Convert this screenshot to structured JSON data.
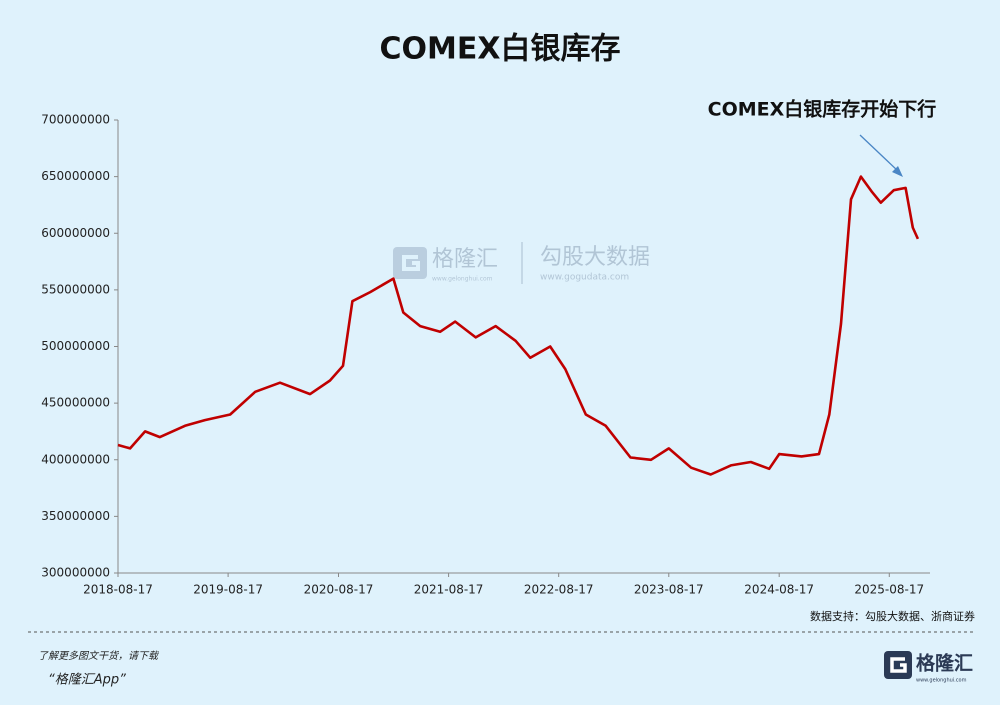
{
  "chart_data": {
    "type": "line",
    "title": "COMEX白银库存",
    "annotation": "COMEX白银库存开始下行",
    "source": "数据支持：勾股大数据、浙商证券",
    "x": [
      "2018-08-17",
      "2018-09-26",
      "2018-11-15",
      "2019-01-03",
      "2019-03-27",
      "2019-06-01",
      "2019-08-24",
      "2019-11-15",
      "2020-02-05",
      "2020-05-15",
      "2020-07-20",
      "2020-09-01",
      "2020-10-02",
      "2020-11-30",
      "2021-02-15",
      "2021-03-20",
      "2021-05-15",
      "2021-07-20",
      "2021-09-08",
      "2021-11-15",
      "2022-01-20",
      "2022-03-27",
      "2022-05-15",
      "2022-07-20",
      "2022-09-08",
      "2022-11-15",
      "2023-01-20",
      "2023-04-12",
      "2023-06-19",
      "2023-08-17",
      "2023-10-30",
      "2024-01-03",
      "2024-03-10",
      "2024-05-15",
      "2024-07-15",
      "2024-08-17",
      "2024-10-30",
      "2024-12-27",
      "2025-01-30",
      "2025-03-10",
      "2025-04-12",
      "2025-05-15",
      "2025-06-19",
      "2025-07-20",
      "2025-09-01",
      "2025-10-10",
      "2025-11-03",
      "2025-11-20"
    ],
    "values": [
      413000000,
      410000000,
      425000000,
      420000000,
      430000000,
      435000000,
      440000000,
      460000000,
      468000000,
      458000000,
      470000000,
      483000000,
      540000000,
      548000000,
      560000000,
      530000000,
      518000000,
      513000000,
      522000000,
      508000000,
      518000000,
      505000000,
      490000000,
      500000000,
      480000000,
      440000000,
      430000000,
      402000000,
      400000000,
      410000000,
      393000000,
      387000000,
      395000000,
      398000000,
      392000000,
      405000000,
      403000000,
      405000000,
      440000000,
      520000000,
      630000000,
      650000000,
      637000000,
      627000000,
      638000000,
      640000000,
      605000000,
      595000000
    ],
    "color": "#c00000",
    "xlim": [
      "2018-08-17",
      "2025-12-30"
    ],
    "xticks": [
      "2018-08-17",
      "2019-08-17",
      "2020-08-17",
      "2021-08-17",
      "2022-08-17",
      "2023-08-17",
      "2024-08-17",
      "2025-08-17"
    ],
    "ylim": [
      300000000,
      700000000
    ],
    "yticks": [
      300000000,
      350000000,
      400000000,
      450000000,
      500000000,
      550000000,
      600000000,
      650000000,
      700000000
    ]
  },
  "watermark": {
    "brand": "格隆汇",
    "brand_url": "www.gelonghui.com",
    "partner": "勾股大数据",
    "partner_url": "www.gogudata.com"
  },
  "footer": {
    "prompt": "了解更多图文干货，请下载",
    "app": "“格隆汇App”",
    "logo_text": "格隆汇",
    "logo_url": "www.gelonghui.com"
  }
}
